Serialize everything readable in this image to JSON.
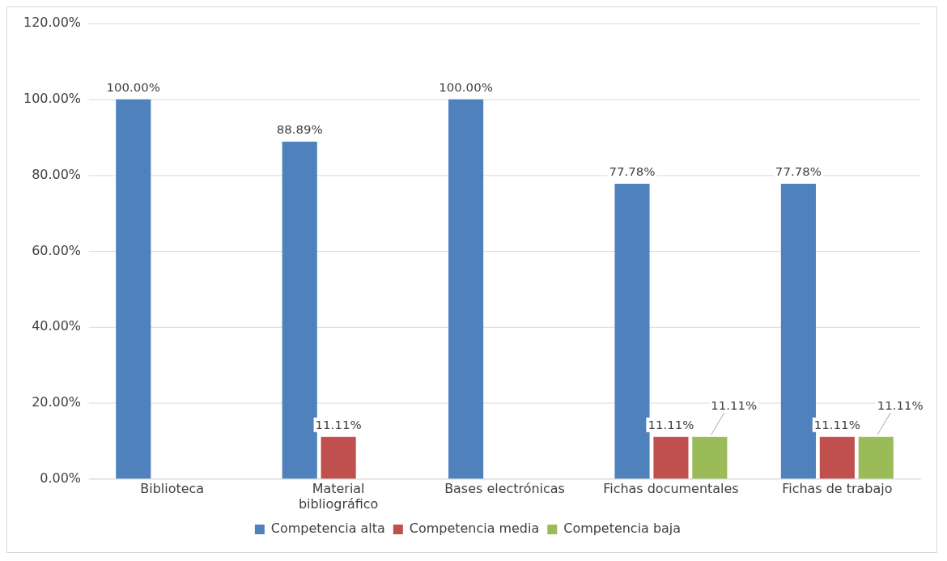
{
  "chart_data": {
    "type": "bar",
    "categories": [
      "Biblioteca",
      "Material bibliográfico",
      "Bases electrónicas",
      "Fichas documentales",
      "Fichas de trabajo"
    ],
    "series": [
      {
        "name": "Competencia alta",
        "color": "#4f81bd",
        "values": [
          100,
          88.89,
          100,
          77.78,
          77.78
        ],
        "value_labels": [
          "100.00%",
          "88.89%",
          "100.00%",
          "77.78%",
          "77.78%"
        ]
      },
      {
        "name": "Competencia media",
        "color": "#c0504d",
        "values": [
          null,
          11.11,
          null,
          11.11,
          11.11
        ],
        "value_labels": [
          null,
          "11.11%",
          null,
          "11.11%",
          "11.11%"
        ]
      },
      {
        "name": "Competencia baja",
        "color": "#9bbb59",
        "values": [
          null,
          null,
          null,
          11.11,
          11.11
        ],
        "value_labels": [
          null,
          null,
          null,
          "11.11%",
          "11.11%"
        ]
      }
    ],
    "ylim": [
      0,
      120
    ],
    "yticks": [
      {
        "value": 0,
        "label": "0.00%"
      },
      {
        "value": 20,
        "label": "20.00%"
      },
      {
        "value": 40,
        "label": "40.00%"
      },
      {
        "value": 60,
        "label": "60.00%"
      },
      {
        "value": 80,
        "label": "80.00%"
      },
      {
        "value": 100,
        "label": "100.00%"
      },
      {
        "value": 120,
        "label": "120.00%"
      }
    ],
    "grid": "y",
    "legend": "bottom"
  }
}
